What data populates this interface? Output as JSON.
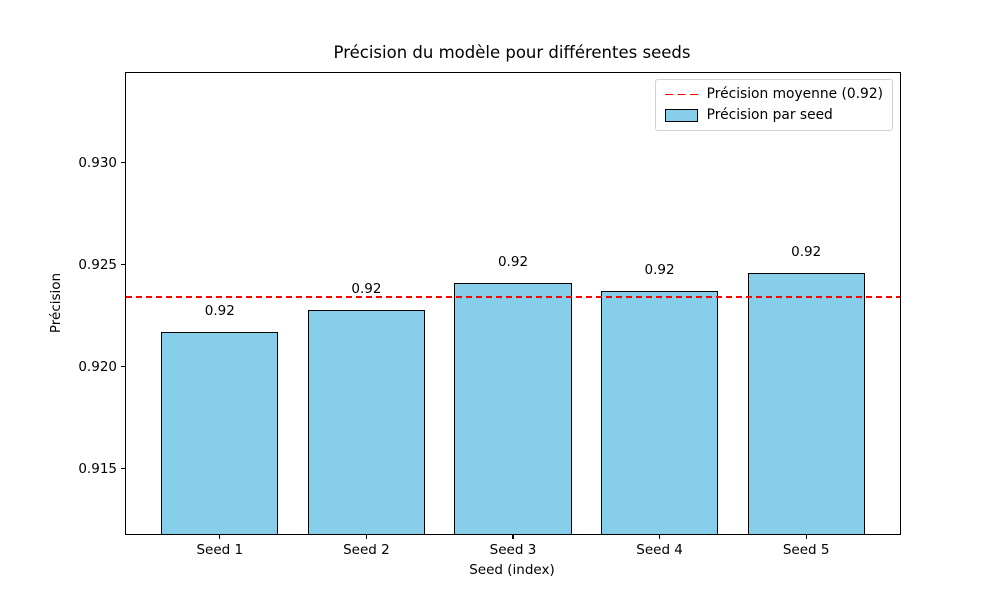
{
  "chart_data": {
    "type": "bar",
    "title": "Précision du modèle pour différentes seeds",
    "xlabel": "Seed (index)",
    "ylabel": "Précision",
    "categories": [
      "Seed 1",
      "Seed 2",
      "Seed 3",
      "Seed 4",
      "Seed 5"
    ],
    "values": [
      0.9217,
      0.9228,
      0.9241,
      0.9237,
      0.9246
    ],
    "bar_value_labels": [
      "0.92",
      "0.92",
      "0.92",
      "0.92",
      "0.92"
    ],
    "mean_line": {
      "value": 0.9234,
      "display_label": "0.92"
    },
    "legend": {
      "position": "upper right",
      "entries": [
        {
          "label": "Précision moyenne (0.92)",
          "marker": "dashed-line",
          "color": "#ff0000"
        },
        {
          "label": "Précision par seed",
          "marker": "patch",
          "color": "#87ceeb",
          "edge_color": "#000000"
        }
      ]
    },
    "yticks": [
      0.915,
      0.92,
      0.925,
      0.93
    ],
    "ytick_labels": [
      "0.915",
      "0.920",
      "0.925",
      "0.930"
    ],
    "ylim": [
      0.9118,
      0.9344
    ],
    "xlim": [
      -0.64,
      4.64
    ],
    "bar_width_units": 0.8,
    "grid": false,
    "colors": {
      "bar_fill": "#87ceeb",
      "bar_edge": "#000000",
      "mean_line": "#ff0000",
      "spine": "#000000",
      "text": "#000000",
      "background": "#ffffff"
    }
  }
}
